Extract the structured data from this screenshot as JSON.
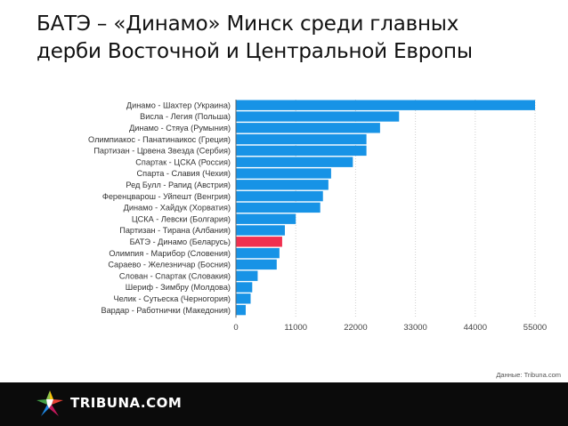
{
  "title": {
    "line1": "БАТЭ – «Динамо» Минск среди главных",
    "line2": "дерби Восточной и Центральной Европы"
  },
  "source": "Данные: Tribuna.com",
  "footer": {
    "brand": "TRIBUNA.COM",
    "logo_icon": "multicolor-star-icon"
  },
  "colors": {
    "bar": "#1793e6",
    "highlight": "#f0304f",
    "grid": "#cfcfcf",
    "label": "#333333",
    "tick": "#444444"
  },
  "chart_data": {
    "type": "bar",
    "orientation": "horizontal",
    "categories": [
      "Динамо - Шахтер (Украина)",
      "Висла - Легия (Польша)",
      "Динамо - Стяуа (Румыния)",
      "Олимпиакос - Панатинаикос (Греция)",
      "Партизан - Црвена Звезда (Сербия)",
      "Спартак - ЦСКА (Россия)",
      "Спарта - Славия (Чехия)",
      "Ред Булл - Рапид (Австрия)",
      "Ференцварош - Уйпешт (Венгрия)",
      "Динамо - Хайдук (Хорватия)",
      "ЦСКА - Левски (Болгария)",
      "Партизан - Тирана (Албания)",
      "БАТЭ - Динамо (Беларусь)",
      "Олимпия - Марибор (Словения)",
      "Сараево - Железничар (Босния)",
      "Слован - Спартак (Словакия)",
      "Шериф - Зимбру (Молдова)",
      "Челик - Сутьеска (Черногория)",
      "Вардар - Работнички (Македония)"
    ],
    "values": [
      55000,
      30000,
      26500,
      24000,
      24000,
      21500,
      17500,
      17000,
      16000,
      15500,
      11000,
      9000,
      8500,
      8000,
      7500,
      4000,
      3000,
      2700,
      1800
    ],
    "highlight_index": 12,
    "xlim": [
      0,
      55000
    ],
    "xticks": [
      "0",
      "11000",
      "22000",
      "33000",
      "44000",
      "55000"
    ],
    "xtick_values": [
      0,
      11000,
      22000,
      33000,
      44000,
      55000
    ],
    "grid": true,
    "title": "",
    "xlabel": "",
    "ylabel": ""
  }
}
